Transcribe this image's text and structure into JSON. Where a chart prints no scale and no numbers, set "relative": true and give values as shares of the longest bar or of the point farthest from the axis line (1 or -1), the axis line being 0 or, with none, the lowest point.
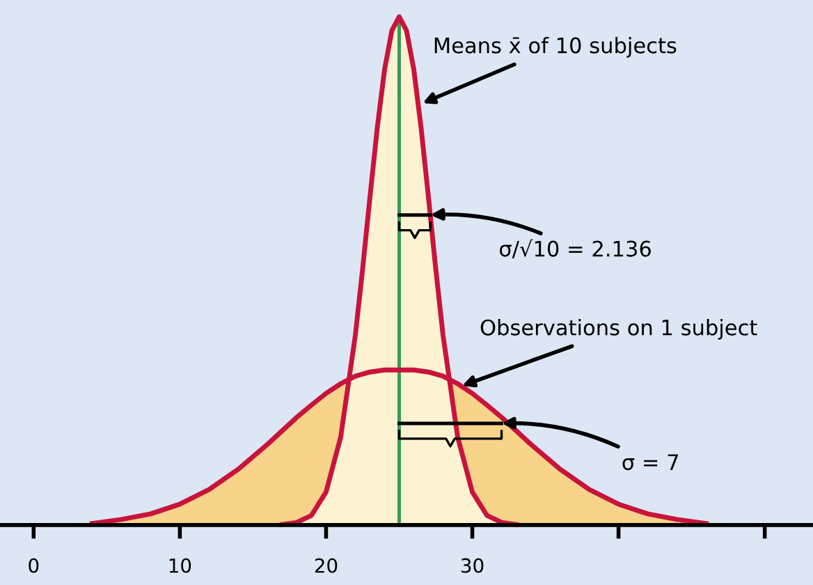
{
  "chart_data": {
    "type": "area",
    "relative": true,
    "xlim": [
      -2.3,
      53.3
    ],
    "xticks": [
      0,
      10,
      20,
      30,
      {
        "value": 40,
        "label": null
      },
      {
        "value": 50,
        "label": null
      }
    ],
    "series": [
      {
        "color": "#c8143c",
        "x": [
          4,
          6,
          8,
          10,
          12,
          14,
          16,
          18,
          19,
          20,
          21,
          22,
          23,
          24,
          25,
          26,
          27,
          28,
          29,
          30,
          31,
          32,
          34,
          36,
          38,
          40,
          42,
          44,
          46
        ],
        "values": [
          0.003,
          0.011,
          0.022,
          0.041,
          0.07,
          0.11,
          0.159,
          0.212,
          0.236,
          0.259,
          0.278,
          0.293,
          0.301,
          0.305,
          0.305,
          0.305,
          0.301,
          0.293,
          0.278,
          0.259,
          0.236,
          0.212,
          0.159,
          0.11,
          0.07,
          0.041,
          0.022,
          0.011,
          0.003
        ]
      },
      {
        "color": "#c8143c",
        "x": [
          17,
          18,
          19,
          20,
          21,
          22,
          22.5,
          23,
          23.5,
          24,
          24.5,
          25,
          25.5,
          26,
          26.5,
          27,
          27.5,
          28,
          29,
          30,
          31,
          32,
          33
        ],
        "values": [
          0.001,
          0.005,
          0.019,
          0.065,
          0.173,
          0.373,
          0.504,
          0.645,
          0.781,
          0.896,
          0.973,
          1,
          0.973,
          0.896,
          0.781,
          0.645,
          0.504,
          0.373,
          0.173,
          0.065,
          0.019,
          0.005,
          0.001
        ]
      }
    ],
    "ref_lines": [
      {
        "axis": "x",
        "value": 25,
        "color": "#3a9a5a"
      }
    ],
    "annotations": [
      {
        "text": "Means x̄ of 10 subjects",
        "x": 26.6,
        "y": 0.83
      },
      {
        "text": "σ/√10 = 2.136",
        "x": 27.136,
        "y": 0.61
      },
      {
        "text": "Observations on 1 subject",
        "x": 29.3,
        "y": 0.274
      },
      {
        "text": "σ = 7",
        "x": 32,
        "y": 0.2
      }
    ]
  }
}
